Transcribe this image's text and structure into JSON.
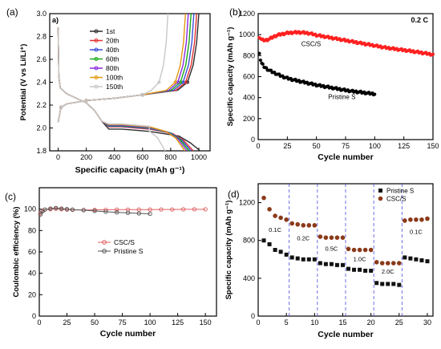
{
  "chart_data": [
    {
      "panel_label": "(a)",
      "inner_label": "a)",
      "type": "line",
      "xlabel": "Specific capacity (mAh g⁻¹)",
      "ylabel": "Potential (V vs Li/Li⁺)",
      "xlim": [
        -60,
        1080
      ],
      "ylim": [
        1.8,
        3.0
      ],
      "xticks": [
        0,
        200,
        400,
        600,
        800,
        1000
      ],
      "yticks": [
        1.8,
        2.0,
        2.2,
        2.4,
        2.6,
        2.8,
        3.0
      ],
      "legend_position": "upper-left",
      "series": [
        {
          "name": "1st",
          "color": "#2b2b2b",
          "discharge_end": 1010,
          "charge_end": 1000,
          "low_plateau": 1.99
        },
        {
          "name": "20th",
          "color": "#e03030",
          "discharge_end": 960,
          "charge_end": 985,
          "low_plateau": 2.01
        },
        {
          "name": "40th",
          "color": "#3a4fd6",
          "discharge_end": 945,
          "charge_end": 965,
          "low_plateau": 2.015
        },
        {
          "name": "60th",
          "color": "#18a818",
          "discharge_end": 930,
          "charge_end": 945,
          "low_plateau": 2.02
        },
        {
          "name": "80th",
          "color": "#8a2be2",
          "discharge_end": 915,
          "charge_end": 925,
          "low_plateau": 2.025
        },
        {
          "name": "100th",
          "color": "#e09a10",
          "discharge_end": 900,
          "charge_end": 905,
          "low_plateau": 2.03
        },
        {
          "name": "150th",
          "color": "#c8c8c8",
          "discharge_end": 760,
          "charge_end": 780,
          "low_plateau": 2.035
        }
      ]
    },
    {
      "panel_label": "(b)",
      "type": "scatter",
      "annotation": "0.2 C",
      "xlabel": "Cycle number",
      "ylabel": "Specific capacity (mAh g⁻¹)",
      "xlim": [
        0,
        150
      ],
      "ylim": [
        0,
        1200
      ],
      "xticks": [
        0,
        25,
        50,
        75,
        100,
        125,
        150
      ],
      "yticks": [
        0,
        200,
        400,
        600,
        800,
        1000,
        1200
      ],
      "series": [
        {
          "name": "CSC/S",
          "color": "#ff2020",
          "points": [
            [
              1,
              980
            ],
            [
              3,
              950
            ],
            [
              6,
              945
            ],
            [
              10,
              960
            ],
            [
              15,
              990
            ],
            [
              20,
              1005
            ],
            [
              25,
              1015
            ],
            [
              30,
              1020
            ],
            [
              35,
              1022
            ],
            [
              40,
              1018
            ],
            [
              45,
              1010
            ],
            [
              50,
              995
            ],
            [
              60,
              975
            ],
            [
              70,
              955
            ],
            [
              80,
              935
            ],
            [
              90,
              915
            ],
            [
              100,
              895
            ],
            [
              110,
              875
            ],
            [
              120,
              860
            ],
            [
              130,
              845
            ],
            [
              140,
              828
            ],
            [
              150,
              810
            ]
          ]
        },
        {
          "name": "Pristine S",
          "color": "#000000",
          "points": [
            [
              1,
              830
            ],
            [
              2,
              760
            ],
            [
              3,
              725
            ],
            [
              5,
              695
            ],
            [
              8,
              670
            ],
            [
              12,
              645
            ],
            [
              16,
              625
            ],
            [
              20,
              605
            ],
            [
              25,
              585
            ],
            [
              30,
              570
            ],
            [
              40,
              545
            ],
            [
              50,
              520
            ],
            [
              60,
              500
            ],
            [
              70,
              480
            ],
            [
              80,
              462
            ],
            [
              90,
              448
            ],
            [
              100,
              435
            ]
          ]
        }
      ],
      "series_labels": [
        "CSC/S",
        "Pristine S"
      ]
    },
    {
      "panel_label": "(c)",
      "type": "scatter",
      "xlabel": "Cycle number",
      "ylabel": "Coulombic efficiency (%)",
      "xlim": [
        0,
        160
      ],
      "ylim": [
        0,
        120
      ],
      "xticks": [
        0,
        25,
        50,
        75,
        100,
        125,
        150
      ],
      "yticks": [
        0,
        20,
        40,
        60,
        80,
        100
      ],
      "legend_position": "center",
      "series": [
        {
          "name": "CSC/S",
          "color": "#e06060",
          "points": [
            [
              1,
              96
            ],
            [
              3,
              98.5
            ],
            [
              5,
              99.5
            ],
            [
              10,
              100
            ],
            [
              15,
              100.5
            ],
            [
              20,
              100
            ],
            [
              25,
              99.5
            ],
            [
              30,
              99.3
            ],
            [
              40,
              99.2
            ],
            [
              50,
              99.3
            ],
            [
              60,
              99.4
            ],
            [
              70,
              99.5
            ],
            [
              80,
              99.5
            ],
            [
              90,
              99.6
            ],
            [
              100,
              99.6
            ],
            [
              110,
              99.7
            ],
            [
              120,
              99.7
            ],
            [
              130,
              99.8
            ],
            [
              140,
              99.8
            ],
            [
              150,
              99.8
            ]
          ]
        },
        {
          "name": "Pristine S",
          "color": "#555555",
          "points": [
            [
              1,
              95
            ],
            [
              3,
              98
            ],
            [
              5,
              99.5
            ],
            [
              10,
              100.5
            ],
            [
              15,
              101
            ],
            [
              20,
              100.5
            ],
            [
              25,
              100
            ],
            [
              30,
              99.5
            ],
            [
              40,
              99
            ],
            [
              50,
              98.3
            ],
            [
              60,
              97.6
            ],
            [
              70,
              97
            ],
            [
              80,
              96.5
            ],
            [
              90,
              96
            ],
            [
              100,
              95.6
            ]
          ]
        }
      ]
    },
    {
      "panel_label": "(d)",
      "type": "scatter",
      "xlabel": "Cycle number",
      "ylabel": "Specific capacity (mAh g⁻¹)",
      "xlim": [
        0,
        31
      ],
      "ylim": [
        0,
        1400
      ],
      "xticks": [
        0,
        5,
        10,
        15,
        20,
        25,
        30
      ],
      "yticks": [
        0,
        400,
        800,
        1200
      ],
      "dividers": [
        5.5,
        10.5,
        15.5,
        20.5,
        25.5
      ],
      "legend_position": "top-right",
      "rate_labels": [
        {
          "text": "0.1C",
          "x": 3,
          "y": 890
        },
        {
          "text": "0.2C",
          "x": 8,
          "y": 800
        },
        {
          "text": "0.5C",
          "x": 13,
          "y": 690
        },
        {
          "text": "1.0C",
          "x": 18,
          "y": 580
        },
        {
          "text": "2.0C",
          "x": 23,
          "y": 450
        },
        {
          "text": "0.1C",
          "x": 28,
          "y": 870
        }
      ],
      "series": [
        {
          "name": "Pristine S",
          "color": "#111111",
          "marker": "square",
          "values": [
            800,
            760,
            700,
            680,
            650,
            620,
            610,
            600,
            600,
            600,
            560,
            550,
            550,
            540,
            540,
            500,
            490,
            490,
            480,
            480,
            350,
            340,
            340,
            340,
            330,
            620,
            610,
            600,
            590,
            580
          ]
        },
        {
          "name": "CSC/S",
          "color": "#8b3a1a",
          "marker": "circle",
          "values": [
            1250,
            1130,
            1060,
            1040,
            1020,
            980,
            970,
            960,
            960,
            960,
            840,
            830,
            830,
            830,
            830,
            710,
            700,
            700,
            700,
            700,
            570,
            560,
            560,
            560,
            560,
            1010,
            1020,
            1020,
            1020,
            1030
          ]
        }
      ]
    }
  ]
}
